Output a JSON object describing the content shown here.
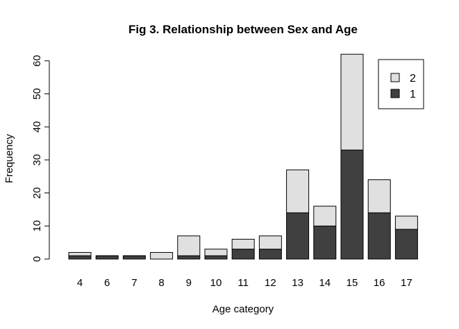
{
  "chart_data": {
    "type": "bar",
    "stacked": true,
    "title": "Fig 3. Relationship between Sex and Age",
    "xlabel": "Age category",
    "ylabel": "Frequency",
    "ylim": [
      0,
      62
    ],
    "yticks": [
      0,
      10,
      20,
      30,
      40,
      50,
      60
    ],
    "grid": false,
    "legend_position": "top-right",
    "categories": [
      "4",
      "6",
      "7",
      "8",
      "9",
      "10",
      "11",
      "12",
      "13",
      "14",
      "15",
      "16",
      "17"
    ],
    "series": [
      {
        "name": "1",
        "color": "#404040",
        "values": [
          1,
          1,
          1,
          0,
          1,
          1,
          3,
          3,
          14,
          10,
          33,
          14,
          9
        ]
      },
      {
        "name": "2",
        "color": "#e0e0e0",
        "values": [
          1,
          0,
          0,
          2,
          6,
          2,
          3,
          4,
          13,
          6,
          29,
          10,
          4
        ]
      }
    ],
    "legend_order": [
      1,
      0
    ]
  }
}
